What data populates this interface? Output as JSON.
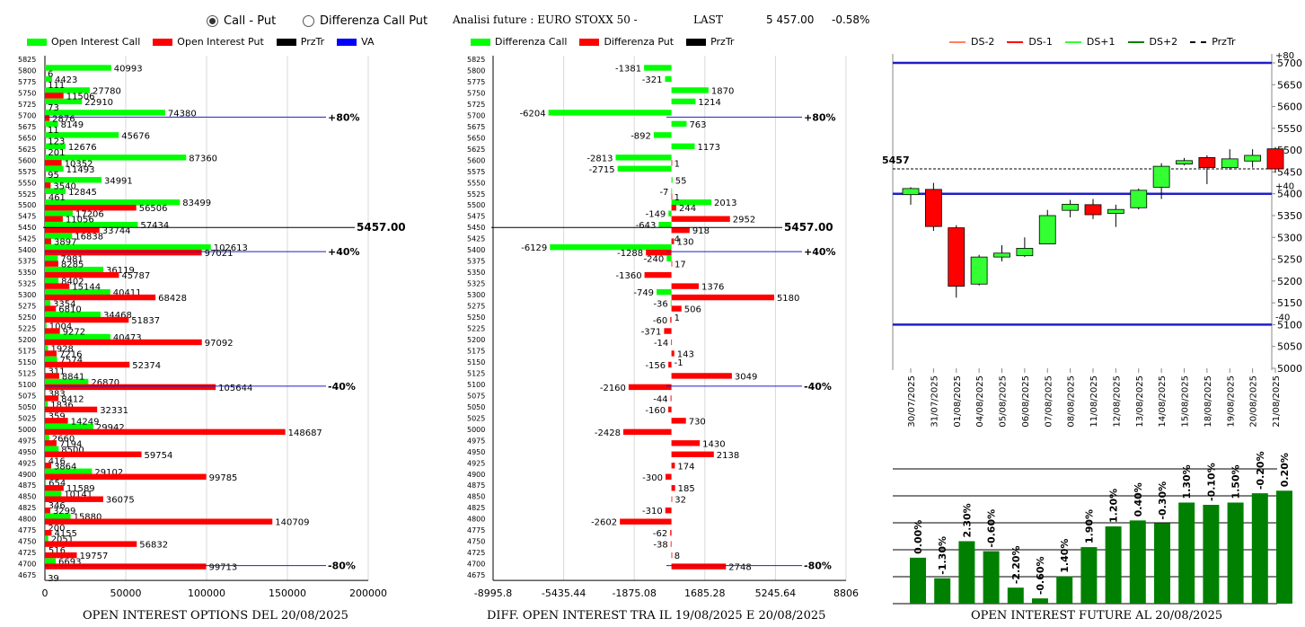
{
  "header": {
    "radio_call_put": "Call - Put",
    "radio_diff": "Differenza Call Put",
    "title": "Analisi future : EURO STOXX 50 -",
    "last_label": "LAST",
    "last_value": "5 457.00",
    "last_change": "-0.58%"
  },
  "legends": {
    "left": [
      {
        "label": "Open Interest Call",
        "color": "#00ff00"
      },
      {
        "label": "Open Interest Put",
        "color": "#ff0000"
      },
      {
        "label": "PrzTr",
        "color": "#000000"
      },
      {
        "label": "VA",
        "color": "#0000ff"
      }
    ],
    "middle": [
      {
        "label": "Differenza Call",
        "color": "#00ff00"
      },
      {
        "label": "Differenza Put",
        "color": "#ff0000"
      },
      {
        "label": "PrzTr",
        "color": "#000000"
      }
    ],
    "right": [
      {
        "label": "DS-2",
        "color": "#ff8060",
        "style": "solid"
      },
      {
        "label": "DS-1",
        "color": "#ff0000",
        "style": "solid"
      },
      {
        "label": "DS+1",
        "color": "#33ff33",
        "style": "solid"
      },
      {
        "label": "DS+2",
        "color": "#008000",
        "style": "solid"
      },
      {
        "label": "PrzTr",
        "color": "#000000",
        "style": "dashed"
      }
    ]
  },
  "captions": {
    "left": "OPEN INTEREST OPTIONS DEL 20/08/2025",
    "middle": "DIFF. OPEN INTEREST TRA IL 19/08/2025 E 20/08/2025",
    "right": "OPEN INTEREST FUTURE AL 20/08/2025"
  },
  "chart_data": [
    {
      "type": "bar",
      "orientation": "horizontal",
      "strikes": [
        5825,
        5800,
        5775,
        5750,
        5725,
        5700,
        5675,
        5650,
        5625,
        5600,
        5575,
        5550,
        5525,
        5500,
        5475,
        5450,
        5425,
        5400,
        5375,
        5350,
        5325,
        5300,
        5275,
        5250,
        5225,
        5200,
        5175,
        5150,
        5125,
        5100,
        5075,
        5050,
        5025,
        5000,
        4975,
        4950,
        4925,
        4900,
        4875,
        4850,
        4825,
        4800,
        4775,
        4750,
        4725,
        4700,
        4675
      ],
      "series": [
        {
          "name": "Open Interest Call",
          "color": "#00ff00",
          "values": [
            null,
            40993,
            4423,
            27780,
            22910,
            74380,
            8149,
            45676,
            12676,
            87360,
            11493,
            34991,
            12845,
            83499,
            17206,
            57434,
            16838,
            102613,
            7981,
            36119,
            8402,
            40411,
            3354,
            34468,
            1004,
            40473,
            1928,
            7574,
            311,
            26870,
            383,
            1836,
            359,
            29942,
            2660,
            8500,
            416,
            29102,
            654,
            10141,
            346,
            15880,
            200,
            2051,
            516,
            6693,
            null
          ]
        },
        {
          "name": "Open Interest Put",
          "color": "#ff0000",
          "values": [
            null,
            6,
            111,
            11506,
            73,
            2876,
            11,
            123,
            201,
            10352,
            95,
            3540,
            461,
            56506,
            11056,
            33744,
            3897,
            97021,
            8285,
            45787,
            15144,
            68428,
            6810,
            51837,
            9272,
            97092,
            7216,
            52374,
            8841,
            105644,
            8412,
            32331,
            14249,
            148687,
            7194,
            59754,
            3864,
            99785,
            11589,
            36075,
            3299,
            140709,
            4155,
            56832,
            19757,
            99713,
            39
          ]
        }
      ],
      "xlim": [
        0,
        200000
      ],
      "xticks": [
        "0",
        "50000",
        "100000",
        "150000",
        "200000"
      ],
      "annotations": [
        {
          "strike": 5700,
          "label": "+80%"
        },
        {
          "strike": 5450,
          "label": "5457.00"
        },
        {
          "strike": 5400,
          "label": "+40%"
        },
        {
          "strike": 5100,
          "label": "-40%"
        },
        {
          "strike": 4700,
          "label": "-80%"
        }
      ]
    },
    {
      "type": "bar",
      "orientation": "horizontal",
      "strikes": [
        5825,
        5800,
        5775,
        5750,
        5725,
        5700,
        5675,
        5650,
        5625,
        5600,
        5575,
        5550,
        5525,
        5500,
        5475,
        5450,
        5425,
        5400,
        5375,
        5350,
        5325,
        5300,
        5275,
        5250,
        5225,
        5200,
        5175,
        5150,
        5125,
        5100,
        5075,
        5050,
        5025,
        5000,
        4975,
        4950,
        4925,
        4900,
        4875,
        4850,
        4825,
        4800,
        4775,
        4750,
        4725,
        4700,
        4675
      ],
      "series": [
        {
          "name": "Differenza Call",
          "color": "#00ff00",
          "values": [
            null,
            -1381,
            -321,
            1870,
            1214,
            -6204,
            763,
            -892,
            1173,
            -2813,
            -2715,
            55,
            -7,
            2013,
            -149,
            -643,
            null,
            -6129,
            -240,
            null,
            null,
            -749,
            -36,
            null,
            null,
            null,
            null,
            null,
            null,
            null,
            null,
            null,
            null,
            null,
            null,
            null,
            null,
            null,
            null,
            null,
            null,
            null,
            null,
            null,
            null,
            null,
            null
          ]
        },
        {
          "name": "Differenza Put",
          "color": "#ff0000",
          "values": [
            null,
            null,
            null,
            null,
            null,
            null,
            null,
            null,
            null,
            1,
            null,
            null,
            1,
            244,
            2952,
            918,
            130,
            -1288,
            17,
            -1360,
            1376,
            5180,
            506,
            -60,
            -371,
            -14,
            143,
            -156,
            3049,
            -2160,
            -44,
            -160,
            730,
            -2428,
            1430,
            2138,
            174,
            -300,
            185,
            32,
            -310,
            -2602,
            -62,
            -38,
            8,
            2748,
            null
          ]
        }
      ],
      "value_labels": [
        {
          "strike": 5425,
          "label": "4"
        },
        {
          "strike": 5250,
          "label": "1"
        },
        {
          "strike": 5150,
          "label": "-1"
        }
      ],
      "xlim": [
        -8995.8,
        8806
      ],
      "xticks": [
        "-8995.8",
        "-5435.44",
        "-1875.08",
        "1685.28",
        "5245.64",
        "8806"
      ],
      "annotations": [
        {
          "strike": 5700,
          "label": "+80%"
        },
        {
          "strike": 5450,
          "label": "5457.00"
        },
        {
          "strike": 5400,
          "label": "+40%"
        },
        {
          "strike": 5100,
          "label": "-40%"
        },
        {
          "strike": 4700,
          "label": "-80%"
        }
      ]
    },
    {
      "type": "candlestick",
      "price_label": "5457",
      "dates": [
        "30/07/2025",
        "31/07/2025",
        "01/08/2025",
        "04/08/2025",
        "05/08/2025",
        "06/08/2025",
        "07/08/2025",
        "08/08/2025",
        "11/08/2025",
        "12/08/2025",
        "13/08/2025",
        "14/08/2025",
        "15/08/2025",
        "18/08/2025",
        "19/08/2025",
        "20/08/2025",
        "21/08/2025"
      ],
      "candles": [
        {
          "open": 5398,
          "close": 5412,
          "high": 5415,
          "low": 5375
        },
        {
          "open": 5410,
          "close": 5325,
          "high": 5425,
          "low": 5315
        },
        {
          "open": 5322,
          "close": 5188,
          "high": 5328,
          "low": 5162
        },
        {
          "open": 5193,
          "close": 5255,
          "high": 5260,
          "low": 5190
        },
        {
          "open": 5255,
          "close": 5264,
          "high": 5282,
          "low": 5245
        },
        {
          "open": 5258,
          "close": 5275,
          "high": 5300,
          "low": 5255
        },
        {
          "open": 5285,
          "close": 5350,
          "high": 5363,
          "low": 5285
        },
        {
          "open": 5362,
          "close": 5376,
          "high": 5386,
          "low": 5346
        },
        {
          "open": 5375,
          "close": 5352,
          "high": 5388,
          "low": 5342
        },
        {
          "open": 5355,
          "close": 5364,
          "high": 5375,
          "low": 5324
        },
        {
          "open": 5368,
          "close": 5408,
          "high": 5412,
          "low": 5364
        },
        {
          "open": 5415,
          "close": 5463,
          "high": 5470,
          "low": 5388
        },
        {
          "open": 5468,
          "close": 5476,
          "high": 5482,
          "low": 5465
        },
        {
          "open": 5483,
          "close": 5460,
          "high": 5488,
          "low": 5422
        },
        {
          "open": 5460,
          "close": 5480,
          "high": 5502,
          "low": 5455
        },
        {
          "open": 5475,
          "close": 5488,
          "high": 5502,
          "low": 5460
        },
        {
          "open": 5503,
          "close": 5457,
          "high": 5507,
          "low": 5448
        }
      ],
      "ylim": [
        5000,
        5700
      ],
      "yticks": [
        "5000",
        "5050",
        "5100",
        "5150",
        "5200",
        "5250",
        "5300",
        "5350",
        "5400",
        "5450",
        "5500",
        "5550",
        "5600",
        "5650",
        "5700"
      ],
      "levels": [
        {
          "value": 5700,
          "label": "+80"
        },
        {
          "value": 5400,
          "label": "+40"
        },
        {
          "value": 5100,
          "label": "-40"
        }
      ],
      "przTr": 5457
    },
    {
      "type": "bar",
      "values": [
        0.0,
        -1.3,
        2.3,
        -0.6,
        -2.2,
        -0.6,
        1.4,
        1.9,
        1.2,
        0.4,
        -0.3,
        1.3,
        -0.1,
        1.5,
        -0.2,
        0.2
      ],
      "labels": [
        "0.00%",
        "-1.30%",
        "2.30%",
        "-0.60%",
        "-2.20%",
        "-0.60%",
        "1.40%",
        "1.90%",
        "1.20%",
        "0.40%",
        "-0.30%",
        "1.30%",
        "-0.10%",
        "1.50%",
        "-0.20%",
        "0.20%"
      ],
      "heights": [
        0.465,
        0.257,
        0.632,
        0.531,
        0.162,
        0.053,
        0.275,
        0.572,
        0.782,
        0.842,
        0.813,
        1.023,
        1.0,
        1.023,
        1.117,
        1.143
      ],
      "color": "#008000"
    }
  ]
}
